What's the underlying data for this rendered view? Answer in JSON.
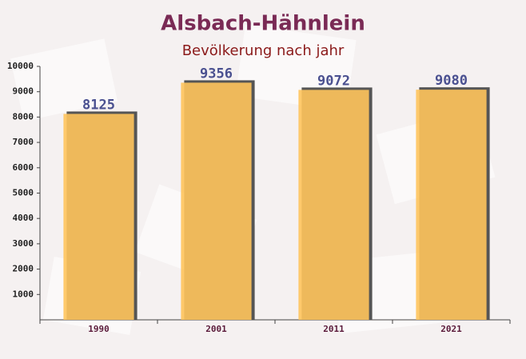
{
  "chart_data": {
    "type": "bar",
    "title": "Alsbach-Hähnlein",
    "subtitle": "Bevölkerung nach jahr",
    "categories": [
      "1990",
      "2001",
      "2011",
      "2021"
    ],
    "values": [
      8125,
      9356,
      9072,
      9080
    ],
    "color": "#ffc45c",
    "ylim": [
      0,
      10000
    ],
    "yticks": [
      1000,
      2000,
      3000,
      4000,
      5000,
      6000,
      7000,
      8000,
      9000,
      10000
    ]
  }
}
